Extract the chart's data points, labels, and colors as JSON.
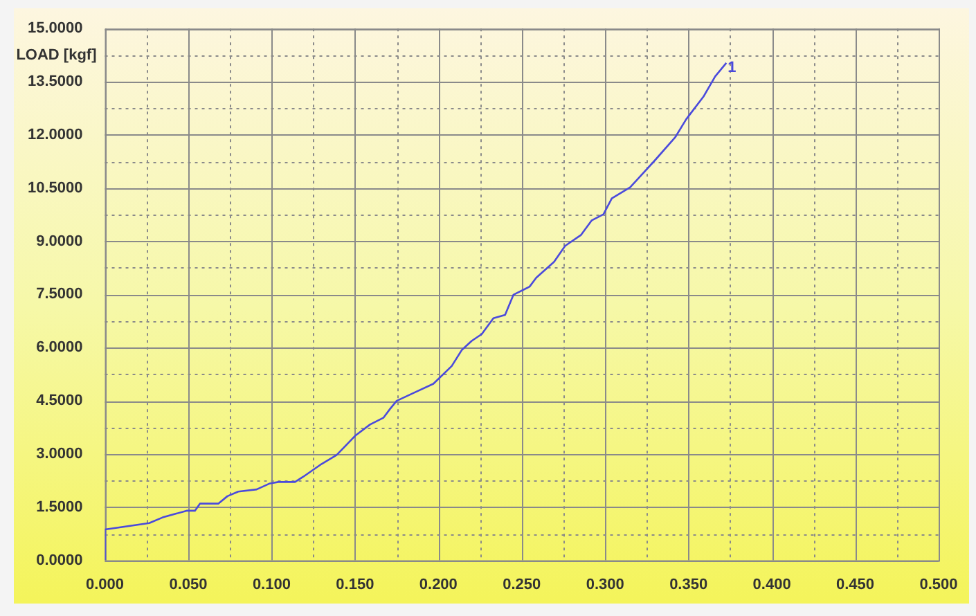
{
  "chart_data": {
    "type": "line",
    "ylabel": "LOAD [kgf]",
    "x": [
      0,
      0,
      0.0266,
      0.0346,
      0.049,
      0.054,
      0.057,
      0.068,
      0.0735,
      0.08,
      0.091,
      0.099,
      0.104,
      0.114,
      0.119,
      0.13,
      0.139,
      0.15,
      0.159,
      0.167,
      0.171,
      0.175,
      0.185,
      0.197,
      0.208,
      0.214,
      0.22,
      0.226,
      0.233,
      0.24,
      0.245,
      0.2547,
      0.2587,
      0.2694,
      0.276,
      0.2856,
      0.292,
      0.299,
      0.304,
      0.315,
      0.33,
      0.342,
      0.3486,
      0.359,
      0.366,
      0.3727
    ],
    "series": [
      {
        "color": "#4a4adc",
        "values": [
          0,
          0.87,
          1.05,
          1.21,
          1.4,
          1.4,
          1.6,
          1.6,
          1.81,
          1.94,
          2.0,
          2.17,
          2.21,
          2.21,
          2.36,
          2.72,
          2.97,
          3.51,
          3.83,
          4.02,
          4.27,
          4.5,
          4.72,
          4.98,
          5.48,
          5.93,
          6.19,
          6.38,
          6.83,
          6.92,
          7.49,
          7.72,
          7.97,
          8.42,
          8.87,
          9.18,
          9.59,
          9.76,
          10.21,
          10.52,
          11.29,
          11.93,
          12.44,
          13.08,
          13.65,
          14.03
        ]
      }
    ],
    "annotations": [
      {
        "text": "1",
        "x": 0.3727,
        "y": 14.03
      }
    ],
    "xlim": [
      0,
      0.5
    ],
    "xticks": [
      {
        "value": 0,
        "label": "0.000"
      },
      {
        "value": 0.025,
        "label": null
      },
      {
        "value": 0.05,
        "label": "0.050"
      },
      {
        "value": 0.075,
        "label": null
      },
      {
        "value": 0.1,
        "label": "0.100"
      },
      {
        "value": 0.125,
        "label": null
      },
      {
        "value": 0.15,
        "label": "0.150"
      },
      {
        "value": 0.175,
        "label": null
      },
      {
        "value": 0.2,
        "label": "0.200"
      },
      {
        "value": 0.225,
        "label": null
      },
      {
        "value": 0.25,
        "label": "0.250"
      },
      {
        "value": 0.275,
        "label": null
      },
      {
        "value": 0.3,
        "label": "0.300"
      },
      {
        "value": 0.325,
        "label": null
      },
      {
        "value": 0.35,
        "label": "0.350"
      },
      {
        "value": 0.375,
        "label": null
      },
      {
        "value": 0.4,
        "label": "0.400"
      },
      {
        "value": 0.425,
        "label": null
      },
      {
        "value": 0.45,
        "label": "0.450"
      },
      {
        "value": 0.475,
        "label": null
      },
      {
        "value": 0.5,
        "label": "0.500"
      }
    ],
    "ylim": [
      0,
      15
    ],
    "yticks": [
      {
        "value": 0,
        "label": "0.0000"
      },
      {
        "value": 0.75,
        "label": null
      },
      {
        "value": 1.5,
        "label": "1.5000"
      },
      {
        "value": 2.25,
        "label": null
      },
      {
        "value": 3,
        "label": "3.0000"
      },
      {
        "value": 3.75,
        "label": null
      },
      {
        "value": 4.5,
        "label": "4.5000"
      },
      {
        "value": 5.25,
        "label": null
      },
      {
        "value": 6,
        "label": "6.0000"
      },
      {
        "value": 6.75,
        "label": null
      },
      {
        "value": 7.5,
        "label": "7.5000"
      },
      {
        "value": 8.25,
        "label": null
      },
      {
        "value": 9,
        "label": "9.0000"
      },
      {
        "value": 9.75,
        "label": null
      },
      {
        "value": 10.5,
        "label": "10.5000"
      },
      {
        "value": 11.25,
        "label": null
      },
      {
        "value": 12,
        "label": "12.0000"
      },
      {
        "value": 12.75,
        "label": null
      },
      {
        "value": 13.5,
        "label": "13.5000"
      },
      {
        "value": 14.25,
        "label": null
      },
      {
        "value": 15,
        "label": "15.0000"
      }
    ],
    "grid": true,
    "legend": false,
    "marker": "none",
    "line_style": "solid"
  }
}
